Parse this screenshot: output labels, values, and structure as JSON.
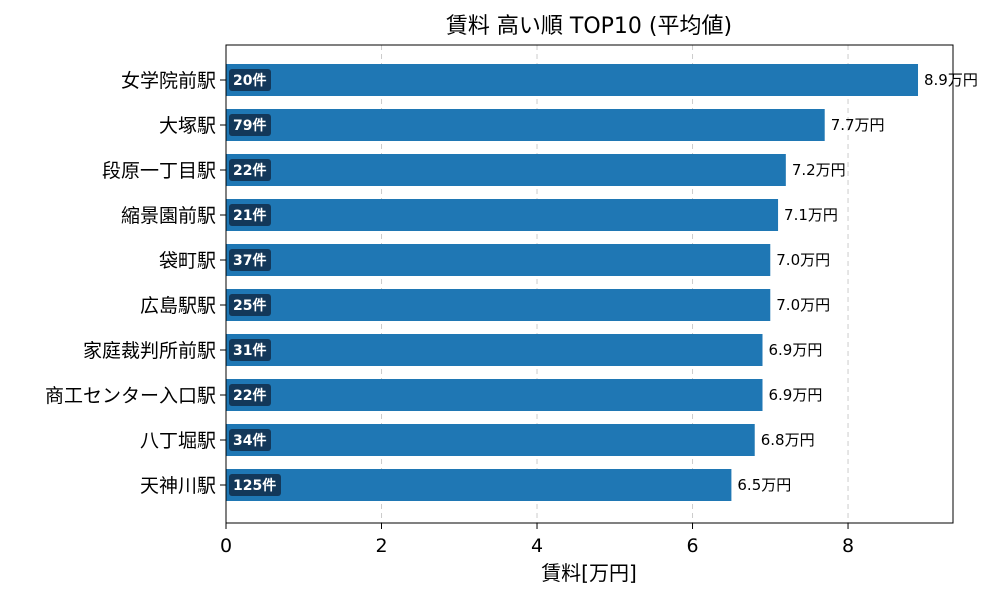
{
  "chart_data": {
    "type": "bar",
    "orientation": "horizontal",
    "title": "賃料 高い順 TOP10 (平均値)",
    "xlabel": "賃料[万円]",
    "ylabel": "",
    "xlim": [
      0,
      9.35
    ],
    "xticks": [
      0,
      2,
      4,
      6,
      8
    ],
    "grid": "x-dashed",
    "categories": [
      "女学院前駅",
      "大塚駅",
      "段原一丁目駅",
      "縮景園前駅",
      "袋町駅",
      "広島駅駅",
      "家庭裁判所前駅",
      "商工センター入口駅",
      "八丁堀駅",
      "天神川駅"
    ],
    "values": [
      8.9,
      7.7,
      7.2,
      7.1,
      7.0,
      7.0,
      6.9,
      6.9,
      6.8,
      6.5
    ],
    "value_labels": [
      "8.9万円",
      "7.7万円",
      "7.2万円",
      "7.1万円",
      "7.0万円",
      "7.0万円",
      "6.9万円",
      "6.9万円",
      "6.8万円",
      "6.5万円"
    ],
    "counts": [
      "20件",
      "79件",
      "22件",
      "21件",
      "37件",
      "25件",
      "31件",
      "22件",
      "34件",
      "125件"
    ],
    "colors": {
      "bar": "#1f77b4",
      "count_badge": "#13385a",
      "grid": "#cccccc"
    }
  }
}
